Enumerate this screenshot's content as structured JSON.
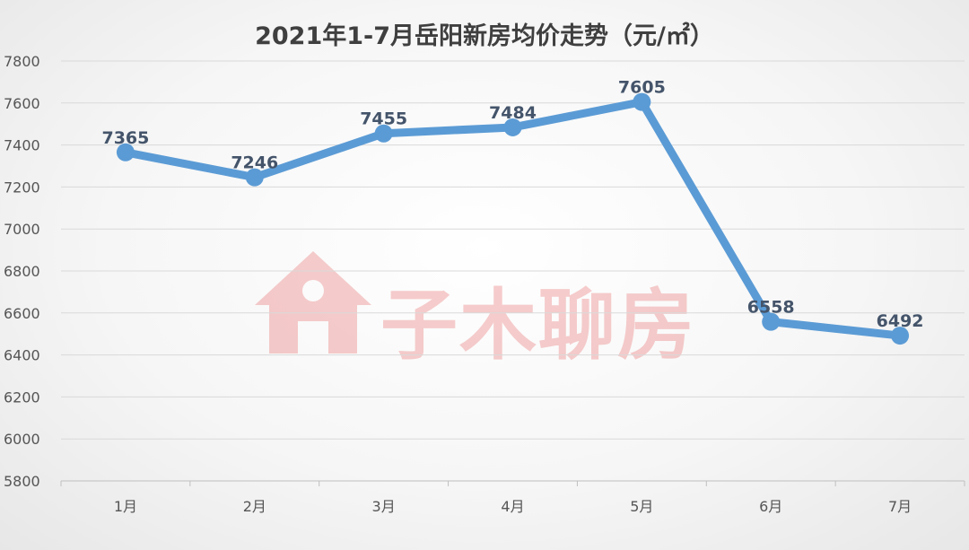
{
  "chart_data": {
    "type": "line",
    "title": "2021年1-7月岳阳新房均价走势（元/㎡）",
    "categories": [
      "1月",
      "2月",
      "3月",
      "4月",
      "5月",
      "6月",
      "7月"
    ],
    "series": [
      {
        "values": [
          7365,
          7246,
          7455,
          7484,
          7605,
          6558,
          6492
        ],
        "color": "#5b9bd5"
      }
    ],
    "ylim": [
      5800,
      7800
    ],
    "yticks": [
      5800,
      6000,
      6200,
      6400,
      6600,
      6800,
      7000,
      7200,
      7400,
      7600,
      7800
    ],
    "grid": true,
    "legend": "none",
    "data_labels": true
  },
  "watermark": {
    "text": "子木聊房",
    "icon": "house-icon",
    "color": "#e02020"
  }
}
